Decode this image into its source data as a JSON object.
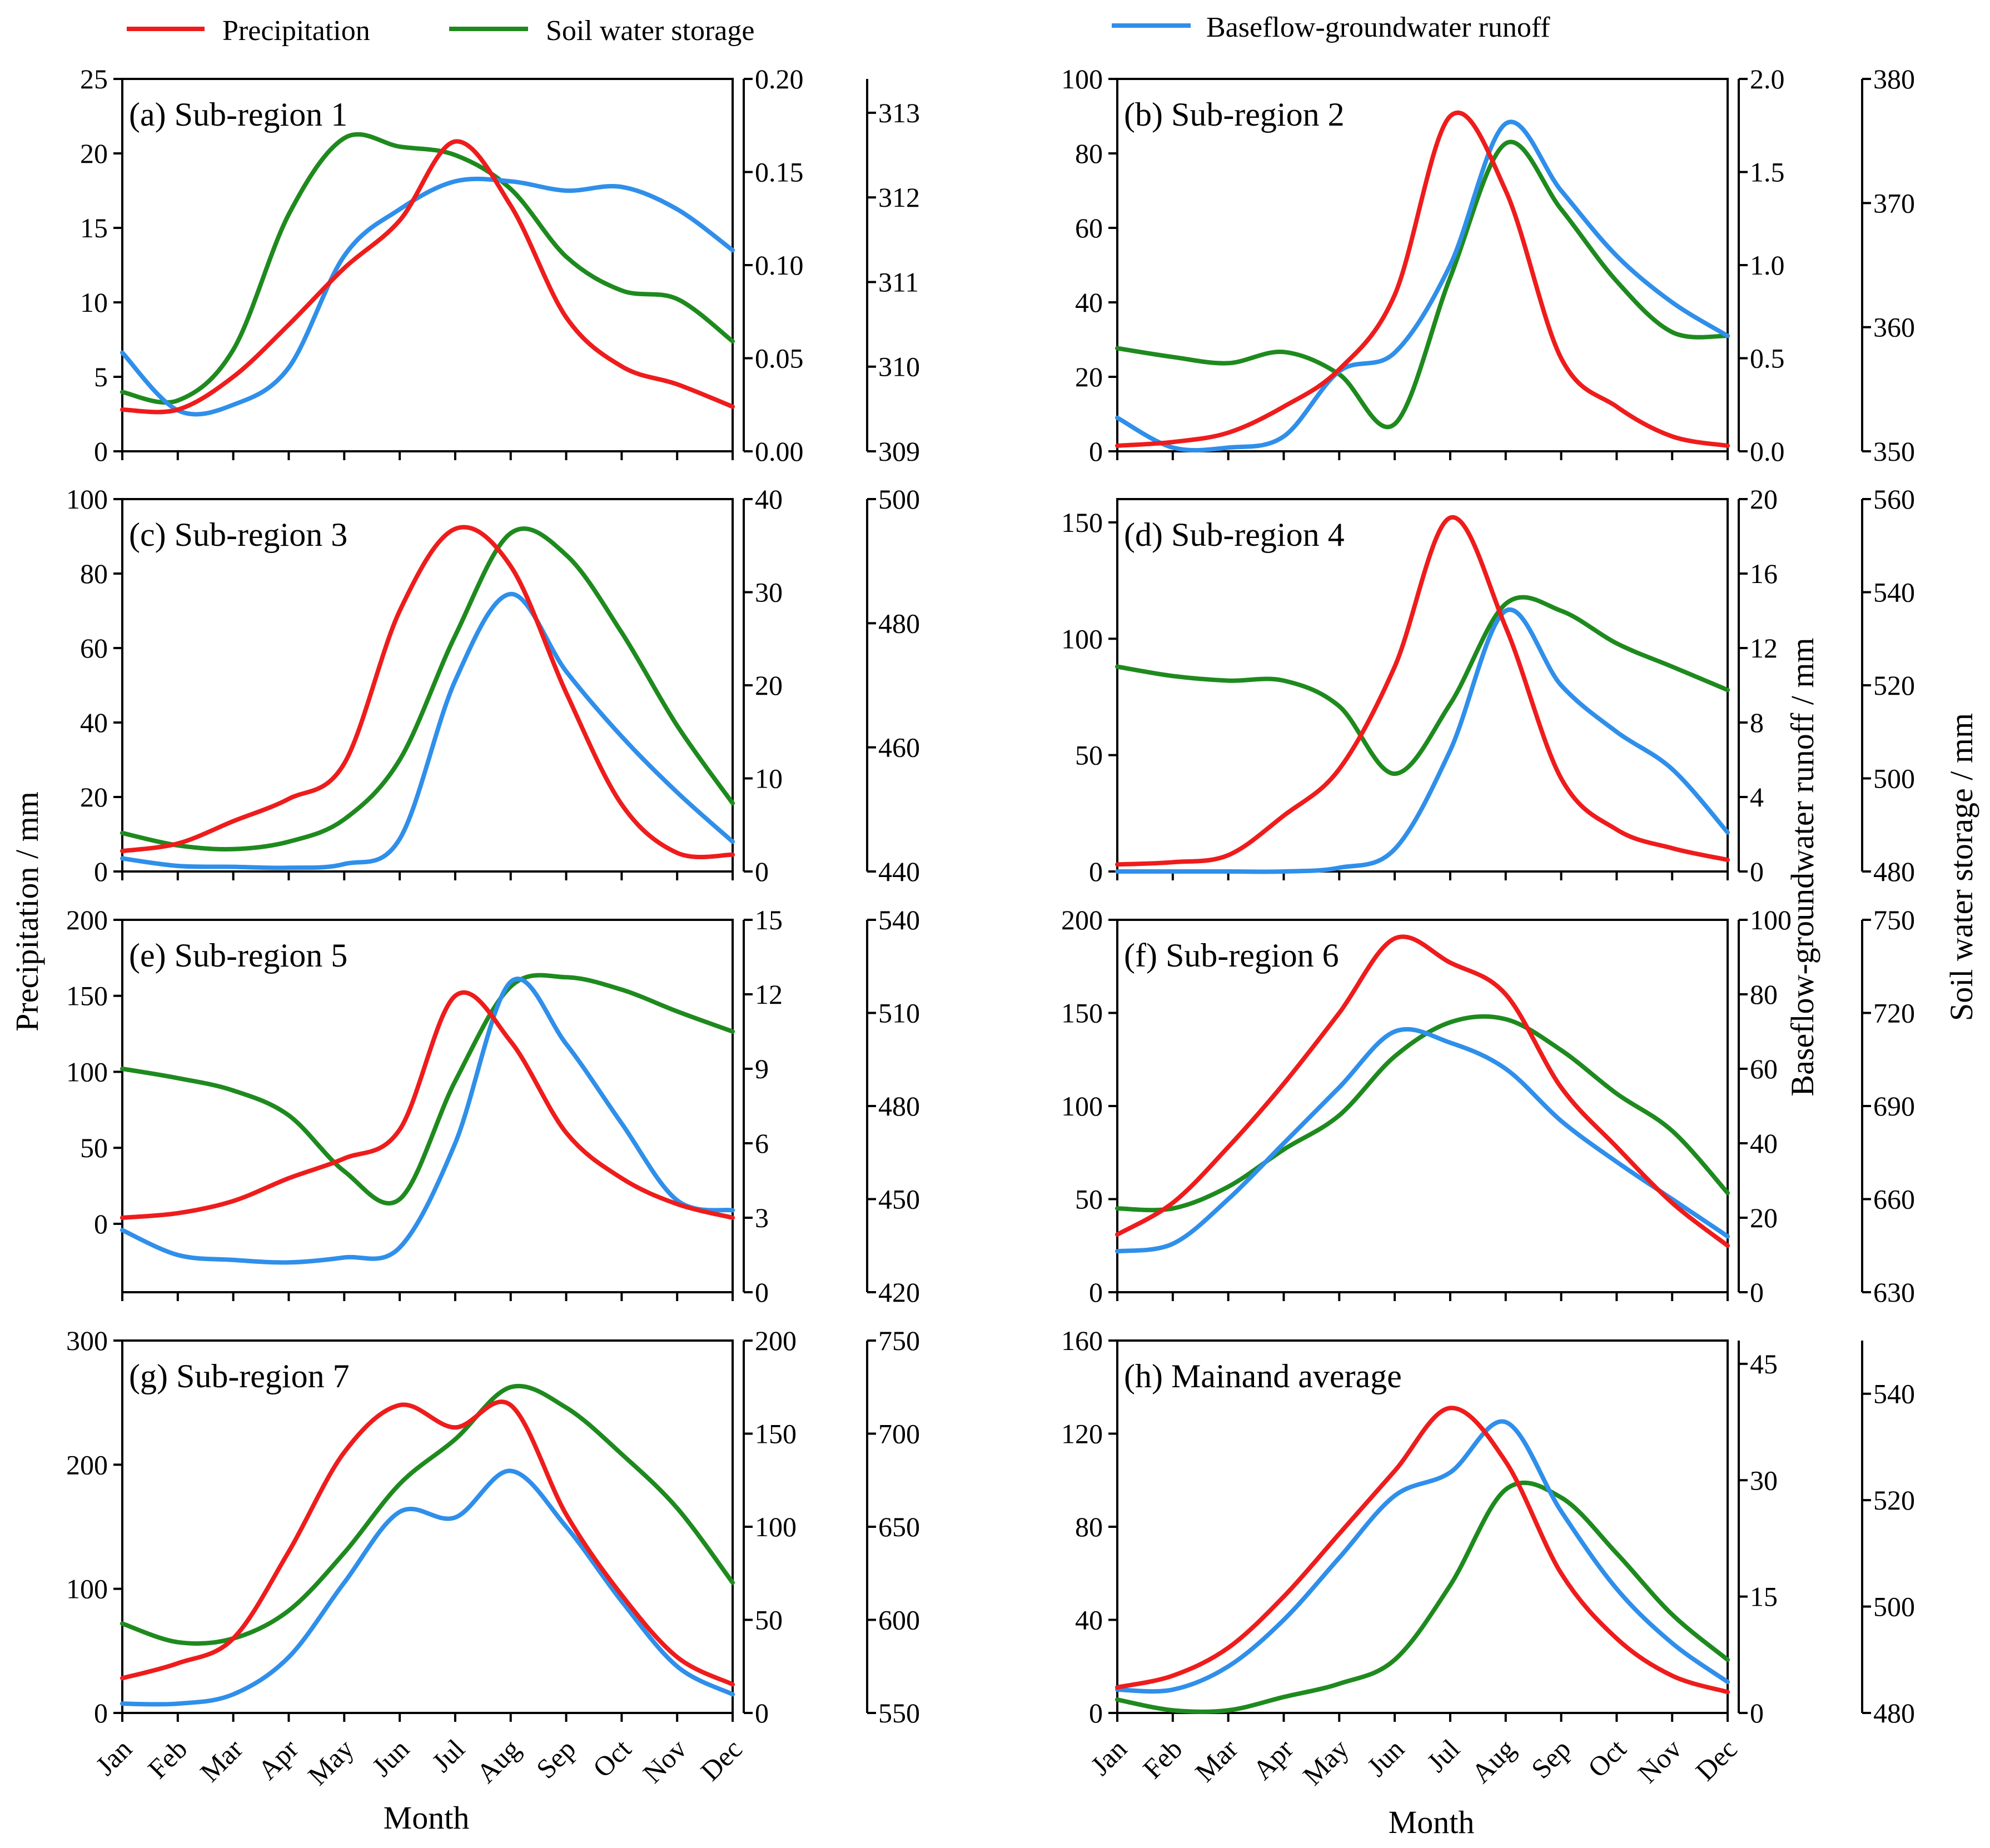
{
  "legend": [
    {
      "name": "Precipitation",
      "color": "#ee1c1c"
    },
    {
      "name": "Soil water storage",
      "color": "#1e8a1e"
    },
    {
      "name": "Baseflow-groundwater runoff",
      "color": "#2f8fea"
    }
  ],
  "axis_titles": {
    "y_left": "Precipitation / mm",
    "y_right_1": "Baseflow-groundwater runoff / mm",
    "y_right_2": "Soil water storage / mm",
    "x": "Month"
  },
  "chart_data": [
    {
      "type": "line",
      "title": "(a) Sub-region 1",
      "categories": [
        "Jan",
        "Feb",
        "Mar",
        "Apr",
        "May",
        "Jun",
        "Jul",
        "Aug",
        "Sep",
        "Oct",
        "Nov",
        "Dec"
      ],
      "precip": {
        "lim": [
          0,
          25
        ],
        "ticks": [
          "0",
          "5",
          "10",
          "15",
          "20",
          "25"
        ],
        "values": [
          2.8,
          2.8,
          5,
          8.5,
          12.3,
          15.5,
          20.8,
          16.5,
          9,
          5.7,
          4.5,
          3
        ]
      },
      "runoff": {
        "lim": [
          0,
          0.2
        ],
        "ticks": [
          "0.00",
          "0.05",
          "0.10",
          "0.15",
          "0.20"
        ],
        "values": [
          0.053,
          0.022,
          0.025,
          0.045,
          0.105,
          0.13,
          0.145,
          0.145,
          0.14,
          0.142,
          0.13,
          0.108
        ]
      },
      "soil": {
        "lim": [
          309,
          313.4
        ],
        "ticks": [
          "309",
          "310",
          "311",
          "312",
          "313"
        ],
        "values": [
          309.7,
          309.6,
          310.2,
          311.8,
          312.7,
          312.6,
          312.5,
          312.1,
          311.3,
          310.9,
          310.8,
          310.3
        ]
      }
    },
    {
      "type": "line",
      "title": "(b) Sub-region 2",
      "categories": [
        "Jan",
        "Feb",
        "Mar",
        "Apr",
        "May",
        "Jun",
        "Jul",
        "Aug",
        "Sep",
        "Oct",
        "Nov",
        "Dec"
      ],
      "precip": {
        "lim": [
          0,
          100
        ],
        "ticks": [
          "0",
          "20",
          "40",
          "60",
          "80",
          "100"
        ],
        "values": [
          1.5,
          2.5,
          5,
          12,
          22,
          42,
          90,
          70,
          25,
          12,
          4,
          1.5
        ]
      },
      "runoff": {
        "lim": [
          0,
          2.0
        ],
        "ticks": [
          "0.0",
          "0.5",
          "1.0",
          "1.5",
          "2.0"
        ],
        "values": [
          0.18,
          0.02,
          0.02,
          0.08,
          0.43,
          0.53,
          1.0,
          1.76,
          1.4,
          1.05,
          0.8,
          0.62
        ]
      },
      "soil": {
        "lim": [
          350,
          380
        ],
        "ticks": [
          "350",
          "360",
          "370",
          "380"
        ],
        "values": [
          358.3,
          357.6,
          357.1,
          358,
          356.2,
          352.2,
          364,
          374.8,
          369.5,
          363.7,
          359.6,
          359.3
        ]
      }
    },
    {
      "type": "line",
      "title": "(c) Sub-region 3",
      "categories": [
        "Jan",
        "Feb",
        "Mar",
        "Apr",
        "May",
        "Jun",
        "Jul",
        "Aug",
        "Sep",
        "Oct",
        "Nov",
        "Dec"
      ],
      "precip": {
        "lim": [
          0,
          100
        ],
        "ticks": [
          "0",
          "20",
          "40",
          "60",
          "80",
          "100"
        ],
        "values": [
          5.5,
          7.5,
          13.5,
          19.5,
          29,
          70,
          92,
          82,
          48,
          18,
          5,
          4.5
        ]
      },
      "runoff": {
        "lim": [
          0,
          40
        ],
        "ticks": [
          "0",
          "10",
          "20",
          "30",
          "40"
        ],
        "values": [
          1.4,
          0.6,
          0.5,
          0.4,
          0.8,
          3.5,
          20.5,
          29.8,
          21.5,
          14.5,
          8.5,
          3.2
        ]
      },
      "soil": {
        "lim": [
          440,
          500
        ],
        "ticks": [
          "440",
          "460",
          "480",
          "500"
        ],
        "values": [
          446.2,
          444.2,
          443.6,
          444.8,
          448.4,
          458,
          478,
          494.5,
          491,
          478.5,
          463.5,
          451
        ]
      }
    },
    {
      "type": "line",
      "title": "(d) Sub-region 4",
      "categories": [
        "Jan",
        "Feb",
        "Mar",
        "Apr",
        "May",
        "Jun",
        "Jul",
        "Aug",
        "Sep",
        "Oct",
        "Nov",
        "Dec"
      ],
      "precip": {
        "lim": [
          0,
          160
        ],
        "ticks": [
          "0",
          "50",
          "100",
          "150"
        ],
        "values": [
          3,
          4,
          7,
          24,
          44,
          88,
          152,
          105,
          40,
          18,
          10,
          5
        ]
      },
      "runoff": {
        "lim": [
          0,
          20
        ],
        "ticks": [
          "0",
          "4",
          "8",
          "12",
          "16",
          "20"
        ],
        "values": [
          0,
          0,
          0,
          0,
          0.2,
          1.2,
          6.5,
          14,
          10,
          7.5,
          5.5,
          2.1
        ]
      },
      "soil": {
        "lim": [
          480,
          560
        ],
        "ticks": [
          "480",
          "500",
          "520",
          "540",
          "560"
        ],
        "values": [
          524,
          522,
          521,
          521,
          515.5,
          501,
          516,
          537.5,
          536,
          529,
          524,
          519
        ]
      }
    },
    {
      "type": "line",
      "title": "(e) Sub-region 5",
      "categories": [
        "Jan",
        "Feb",
        "Mar",
        "Apr",
        "May",
        "Jun",
        "Jul",
        "Aug",
        "Sep",
        "Oct",
        "Nov",
        "Dec"
      ],
      "precip": {
        "lim": [
          -45,
          200
        ],
        "ticks": [
          "0",
          "50",
          "100",
          "150",
          "200"
        ],
        "values": [
          4,
          7,
          15,
          30,
          43,
          62,
          150,
          120,
          60,
          30,
          13,
          4
        ]
      },
      "runoff": {
        "lim": [
          0,
          15
        ],
        "ticks": [
          "0",
          "3",
          "6",
          "9",
          "12",
          "15"
        ],
        "values": [
          2.5,
          1.5,
          1.3,
          1.2,
          1.4,
          1.8,
          6,
          12.5,
          10,
          6.8,
          3.7,
          3.3
        ]
      },
      "soil": {
        "lim": [
          420,
          540
        ],
        "ticks": [
          "420",
          "450",
          "480",
          "510",
          "540"
        ],
        "values": [
          492,
          489,
          485,
          477,
          459,
          450,
          488,
          518.5,
          521.5,
          517.5,
          510.5,
          504
        ]
      }
    },
    {
      "type": "line",
      "title": "(f) Sub-region 6",
      "categories": [
        "Jan",
        "Feb",
        "Mar",
        "Apr",
        "May",
        "Jun",
        "Jul",
        "Aug",
        "Sep",
        "Oct",
        "Nov",
        "Dec"
      ],
      "precip": {
        "lim": [
          0,
          200
        ],
        "ticks": [
          "0",
          "50",
          "100",
          "150",
          "200"
        ],
        "values": [
          31,
          48,
          78,
          112,
          150,
          190,
          177,
          160,
          110,
          78,
          48,
          25
        ]
      },
      "runoff": {
        "lim": [
          0,
          100
        ],
        "ticks": [
          "0",
          "20",
          "40",
          "60",
          "80",
          "100"
        ],
        "values": [
          11,
          13,
          25,
          40,
          55,
          70,
          67,
          60,
          46,
          35,
          25,
          15
        ]
      },
      "soil": {
        "lim": [
          630,
          750
        ],
        "ticks": [
          "630",
          "660",
          "690",
          "720",
          "750"
        ],
        "values": [
          657,
          657,
          664,
          676,
          687,
          706,
          717,
          718,
          708,
          694,
          682,
          662
        ]
      }
    },
    {
      "type": "line",
      "title": "(g) Sub-region 7",
      "categories": [
        "Jan",
        "Feb",
        "Mar",
        "Apr",
        "May",
        "Jun",
        "Jul",
        "Aug",
        "Sep",
        "Oct",
        "Nov",
        "Dec"
      ],
      "precip": {
        "lim": [
          0,
          300
        ],
        "ticks": [
          "0",
          "100",
          "200",
          "300"
        ],
        "values": [
          28,
          40,
          60,
          130,
          210,
          248,
          230,
          248,
          160,
          95,
          45,
          23
        ]
      },
      "runoff": {
        "lim": [
          0,
          200
        ],
        "ticks": [
          "0",
          "50",
          "100",
          "150",
          "200"
        ],
        "values": [
          5,
          5,
          10,
          30,
          70,
          108,
          105,
          130,
          100,
          60,
          25,
          10
        ]
      },
      "soil": {
        "lim": [
          550,
          750
        ],
        "ticks": [
          "550",
          "600",
          "650",
          "700",
          "750"
        ],
        "values": [
          598,
          588,
          590,
          605,
          636,
          673,
          697,
          725,
          714,
          689,
          660,
          620
        ]
      }
    },
    {
      "type": "line",
      "title": "(h) Mainand average",
      "categories": [
        "Jan",
        "Feb",
        "Mar",
        "Apr",
        "May",
        "Jun",
        "Jul",
        "Aug",
        "Sep",
        "Oct",
        "Nov",
        "Dec"
      ],
      "precip": {
        "lim": [
          0,
          160
        ],
        "ticks": [
          "0",
          "40",
          "80",
          "120",
          "160"
        ],
        "values": [
          11,
          16,
          28,
          50,
          77,
          104,
          131,
          108,
          60,
          32,
          16,
          9
        ]
      },
      "runoff": {
        "lim": [
          0,
          48
        ],
        "ticks": [
          "0",
          "15",
          "30",
          "45"
        ],
        "values": [
          3,
          3,
          6,
          12,
          20,
          28,
          31,
          37.5,
          26,
          16,
          9,
          4
        ]
      },
      "soil": {
        "lim": [
          480,
          550
        ],
        "ticks": [
          "480",
          "500",
          "520",
          "540"
        ],
        "values": [
          482.5,
          480.5,
          480.5,
          483,
          485.5,
          490,
          504,
          522,
          520.5,
          510,
          498.5,
          490
        ]
      }
    }
  ]
}
